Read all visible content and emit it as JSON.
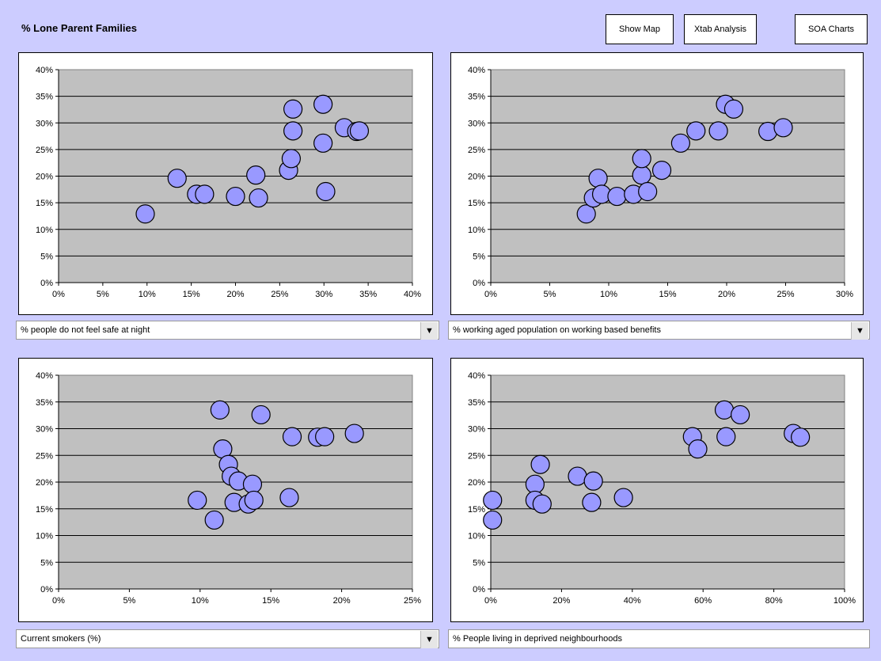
{
  "page": {
    "title": "% Lone Parent Families"
  },
  "buttons": {
    "show_map": "Show Map",
    "xtab": "Xtab Analysis",
    "soa": "SOA Charts"
  },
  "dropdowns": [
    {
      "label": "% people do not feel safe at night",
      "has_arrow": true
    },
    {
      "label": "% working aged population on working based benefits",
      "has_arrow": true
    },
    {
      "label": "Current smokers (%)",
      "has_arrow": true
    },
    {
      "label": "% People living in deprived neighbourhoods",
      "has_arrow": false
    }
  ],
  "icons": {
    "dropdown_arrow": "▼"
  },
  "colors": {
    "background": "#ccccff",
    "plot_area": "#c0c0c0",
    "marker_fill": "#9999ff",
    "marker_stroke": "#000000"
  },
  "chart_data": [
    {
      "type": "scatter",
      "title": "",
      "xlabel": "",
      "ylabel": "",
      "xlim": [
        0,
        40
      ],
      "ylim": [
        0,
        40
      ],
      "xticks": [
        "0%",
        "5%",
        "10%",
        "15%",
        "20%",
        "25%",
        "30%",
        "35%",
        "40%"
      ],
      "yticks": [
        "0%",
        "5%",
        "10%",
        "15%",
        "20%",
        "25%",
        "30%",
        "35%",
        "40%"
      ],
      "grid": true,
      "points": [
        [
          9.8,
          12.9
        ],
        [
          13.4,
          19.6
        ],
        [
          15.6,
          16.6
        ],
        [
          16.5,
          16.6
        ],
        [
          20.0,
          16.2
        ],
        [
          22.3,
          20.2
        ],
        [
          22.6,
          15.9
        ],
        [
          26.0,
          21.1
        ],
        [
          26.3,
          23.3
        ],
        [
          26.5,
          28.5
        ],
        [
          26.5,
          32.6
        ],
        [
          29.9,
          33.5
        ],
        [
          29.9,
          26.2
        ],
        [
          30.2,
          17.1
        ],
        [
          32.3,
          29.1
        ],
        [
          33.7,
          28.4
        ],
        [
          34.0,
          28.5
        ]
      ]
    },
    {
      "type": "scatter",
      "title": "",
      "xlabel": "",
      "ylabel": "",
      "xlim": [
        0,
        30
      ],
      "ylim": [
        0,
        40
      ],
      "xticks": [
        "0%",
        "5%",
        "10%",
        "15%",
        "20%",
        "25%",
        "30%"
      ],
      "yticks": [
        "0%",
        "5%",
        "10%",
        "15%",
        "20%",
        "25%",
        "30%",
        "35%",
        "40%"
      ],
      "grid": true,
      "points": [
        [
          8.1,
          12.9
        ],
        [
          8.7,
          15.9
        ],
        [
          9.1,
          19.6
        ],
        [
          9.4,
          16.6
        ],
        [
          10.7,
          16.2
        ],
        [
          12.1,
          16.6
        ],
        [
          12.8,
          20.2
        ],
        [
          12.8,
          23.3
        ],
        [
          13.3,
          17.1
        ],
        [
          14.5,
          21.1
        ],
        [
          16.1,
          26.2
        ],
        [
          17.4,
          28.5
        ],
        [
          19.3,
          28.5
        ],
        [
          19.9,
          33.5
        ],
        [
          20.6,
          32.6
        ],
        [
          23.5,
          28.4
        ],
        [
          24.8,
          29.1
        ]
      ]
    },
    {
      "type": "scatter",
      "title": "",
      "xlabel": "",
      "ylabel": "",
      "xlim": [
        0,
        25
      ],
      "ylim": [
        0,
        40
      ],
      "xticks": [
        "0%",
        "5%",
        "10%",
        "15%",
        "20%",
        "25%"
      ],
      "yticks": [
        "0%",
        "5%",
        "10%",
        "15%",
        "20%",
        "25%",
        "30%",
        "35%",
        "40%"
      ],
      "grid": true,
      "points": [
        [
          9.8,
          16.6
        ],
        [
          11.0,
          12.9
        ],
        [
          11.4,
          33.5
        ],
        [
          11.6,
          26.2
        ],
        [
          12.0,
          23.3
        ],
        [
          12.2,
          21.1
        ],
        [
          12.4,
          16.2
        ],
        [
          12.7,
          20.2
        ],
        [
          13.4,
          15.9
        ],
        [
          13.7,
          19.6
        ],
        [
          13.8,
          16.6
        ],
        [
          14.3,
          32.6
        ],
        [
          16.3,
          17.1
        ],
        [
          16.5,
          28.5
        ],
        [
          18.3,
          28.4
        ],
        [
          18.8,
          28.5
        ],
        [
          20.9,
          29.1
        ]
      ]
    },
    {
      "type": "scatter",
      "title": "",
      "xlabel": "",
      "ylabel": "",
      "xlim": [
        0,
        100
      ],
      "ylim": [
        0,
        40
      ],
      "xticks": [
        "0%",
        "20%",
        "40%",
        "60%",
        "80%",
        "100%"
      ],
      "yticks": [
        "0%",
        "5%",
        "10%",
        "15%",
        "20%",
        "25%",
        "30%",
        "35%",
        "40%"
      ],
      "grid": true,
      "points": [
        [
          0.5,
          16.6
        ],
        [
          0.5,
          12.9
        ],
        [
          12.5,
          19.6
        ],
        [
          12.5,
          16.6
        ],
        [
          14.0,
          23.3
        ],
        [
          14.5,
          15.9
        ],
        [
          24.5,
          21.1
        ],
        [
          28.5,
          16.2
        ],
        [
          29.0,
          20.2
        ],
        [
          37.5,
          17.1
        ],
        [
          57.0,
          28.5
        ],
        [
          58.5,
          26.2
        ],
        [
          66.0,
          33.5
        ],
        [
          66.5,
          28.5
        ],
        [
          70.5,
          32.6
        ],
        [
          85.5,
          29.1
        ],
        [
          87.5,
          28.4
        ]
      ]
    }
  ]
}
